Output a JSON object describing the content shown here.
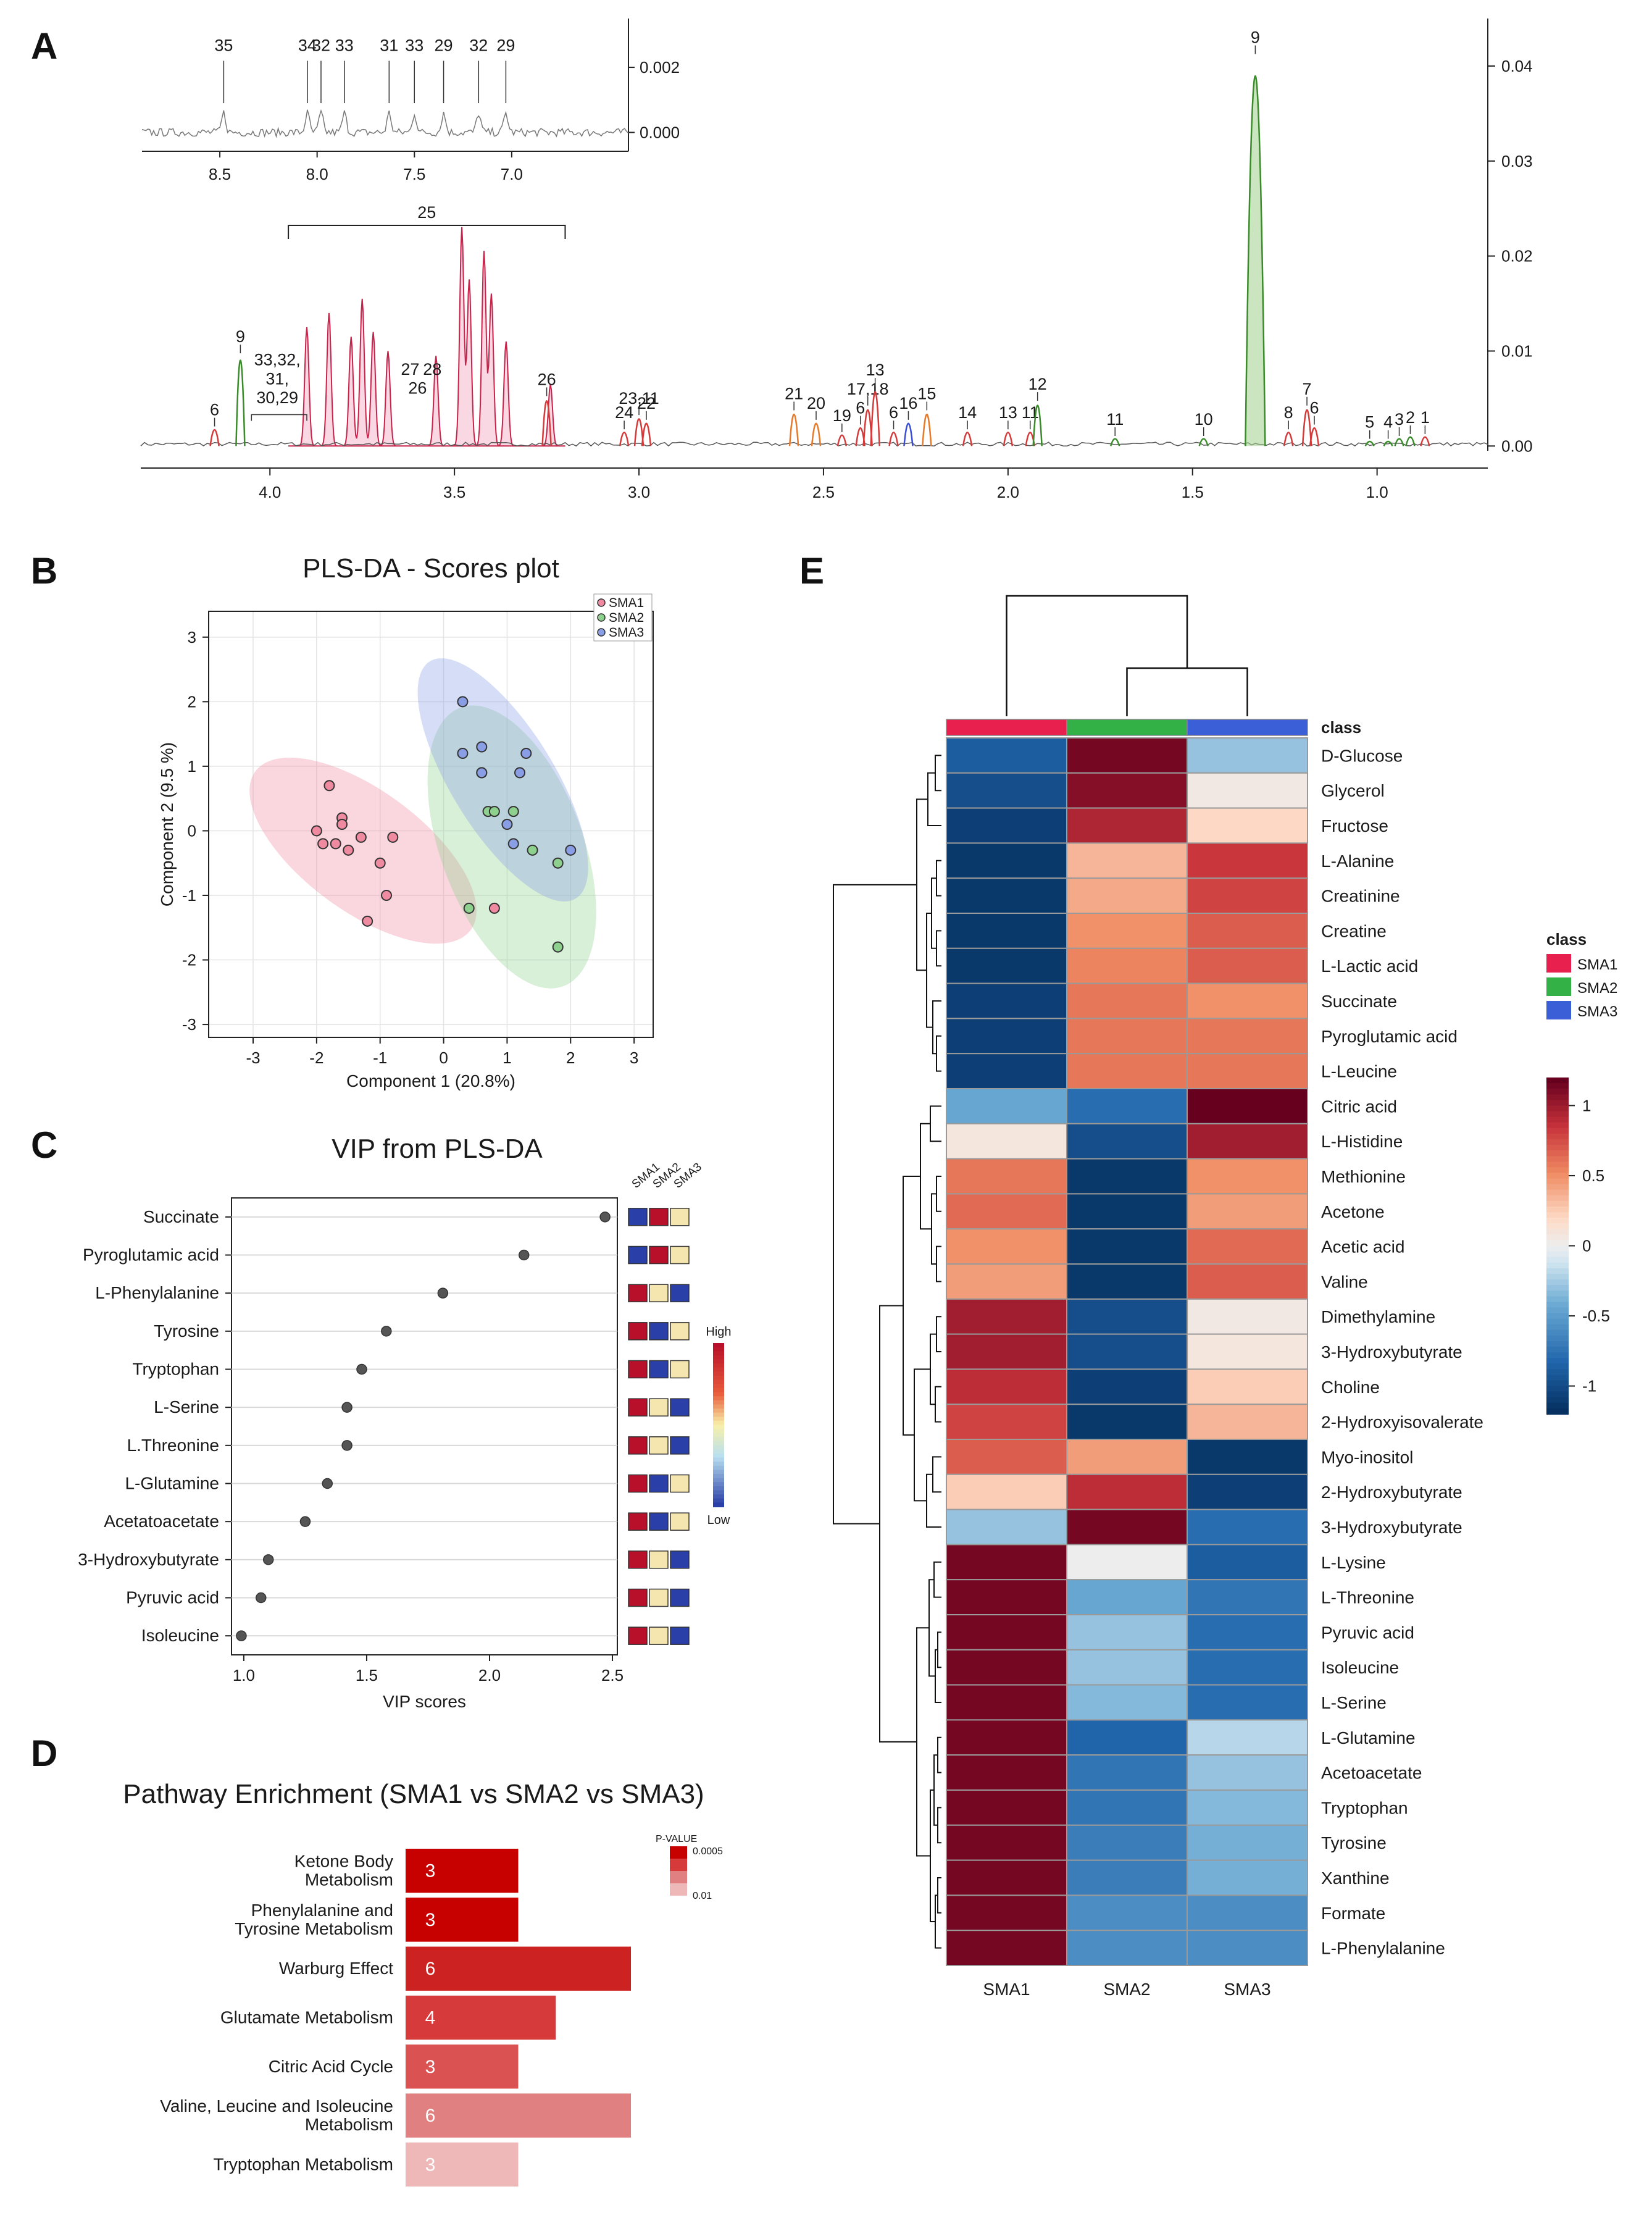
{
  "panels": {
    "a": "A",
    "b": "B",
    "c": "C",
    "d": "D",
    "e": "E"
  },
  "chart_data": [
    {
      "id": "A",
      "type": "line",
      "title": "",
      "xlabel": "",
      "ylabel": "",
      "x_ticks": [
        "4.0",
        "3.5",
        "3.0",
        "2.5",
        "2.0",
        "1.5",
        "1.0"
      ],
      "y_ticks": [
        "0.00",
        "0.01",
        "0.02",
        "0.03",
        "0.04"
      ],
      "xlim": [
        4.35,
        0.7
      ],
      "ylim": [
        -0.0005,
        0.045
      ],
      "groups": [
        "SMA1",
        "SMA2",
        "SMA3"
      ],
      "peaks": [
        {
          "x": 4.15,
          "y": 0.0018,
          "label": "6",
          "color": "#d43a3a"
        },
        {
          "x": 4.08,
          "y": 0.0095,
          "label": "9",
          "color": "#3a8c2a"
        },
        {
          "x": 3.25,
          "y": 0.005,
          "label": "26",
          "color": "#d43a3a"
        },
        {
          "x": 3.04,
          "y": 0.0015,
          "label": "24",
          "color": "#d43a3a"
        },
        {
          "x": 3.0,
          "y": 0.003,
          "label": "23,11",
          "color": "#d43a3a"
        },
        {
          "x": 2.98,
          "y": 0.0025,
          "label": "22",
          "color": "#d43a3a"
        },
        {
          "x": 2.58,
          "y": 0.0035,
          "label": "21",
          "color": "#e67a2a"
        },
        {
          "x": 2.52,
          "y": 0.0025,
          "label": "20",
          "color": "#e67a2a"
        },
        {
          "x": 2.45,
          "y": 0.0012,
          "label": "19",
          "color": "#d43a3a"
        },
        {
          "x": 2.4,
          "y": 0.002,
          "label": "6",
          "color": "#d43a3a"
        },
        {
          "x": 2.38,
          "y": 0.004,
          "label": "17,18",
          "color": "#d43a3a"
        },
        {
          "x": 2.36,
          "y": 0.006,
          "label": "13",
          "color": "#d43a3a"
        },
        {
          "x": 2.31,
          "y": 0.0015,
          "label": "6",
          "color": "#d43a3a"
        },
        {
          "x": 2.27,
          "y": 0.0025,
          "label": "16",
          "color": "#3a4fd1"
        },
        {
          "x": 2.22,
          "y": 0.0035,
          "label": "15",
          "color": "#e67a2a"
        },
        {
          "x": 2.11,
          "y": 0.0015,
          "label": "14",
          "color": "#d43a3a"
        },
        {
          "x": 2.0,
          "y": 0.0015,
          "label": "13",
          "color": "#d43a3a"
        },
        {
          "x": 1.94,
          "y": 0.0015,
          "label": "11",
          "color": "#d43a3a"
        },
        {
          "x": 1.92,
          "y": 0.0045,
          "label": "12",
          "color": "#3a8c2a"
        },
        {
          "x": 1.71,
          "y": 0.0008,
          "label": "11",
          "color": "#3a8c2a"
        },
        {
          "x": 1.47,
          "y": 0.0008,
          "label": "10",
          "color": "#3a8c2a"
        },
        {
          "x": 1.33,
          "y": 0.041,
          "label": "9",
          "color": "#3a8c2a"
        },
        {
          "x": 1.24,
          "y": 0.0015,
          "label": "8",
          "color": "#d43a3a"
        },
        {
          "x": 1.19,
          "y": 0.004,
          "label": "7",
          "color": "#d43a3a"
        },
        {
          "x": 1.17,
          "y": 0.002,
          "label": "6",
          "color": "#d43a3a"
        },
        {
          "x": 1.02,
          "y": 0.0005,
          "label": "5",
          "color": "#3a8c2a"
        },
        {
          "x": 0.97,
          "y": 0.0005,
          "label": "4",
          "color": "#3a8c2a"
        },
        {
          "x": 0.94,
          "y": 0.0008,
          "label": "3",
          "color": "#3a8c2a"
        },
        {
          "x": 0.91,
          "y": 0.001,
          "label": "2",
          "color": "#3a8c2a"
        },
        {
          "x": 0.87,
          "y": 0.001,
          "label": "1",
          "color": "#d43a3a"
        }
      ],
      "group_labels": [
        {
          "text": "33,32,",
          "x": 3.98,
          "y": 0.0085
        },
        {
          "text": "31,",
          "x": 3.98,
          "y": 0.0065
        },
        {
          "text": "30,29",
          "x": 3.98,
          "y": 0.0045
        },
        {
          "text": "27",
          "x": 3.62,
          "y": 0.0075
        },
        {
          "text": "26",
          "x": 3.6,
          "y": 0.0055
        },
        {
          "text": "28",
          "x": 3.56,
          "y": 0.0075
        }
      ],
      "region_25": {
        "label": "25",
        "x_from": 3.95,
        "x_to": 3.2
      },
      "inset": {
        "x_ticks": [
          "8.5",
          "8.0",
          "7.5",
          "7.0"
        ],
        "y_ticks": [
          "0.002",
          "0.000"
        ],
        "xlim": [
          8.9,
          6.4
        ],
        "ylim": [
          -0.0002,
          0.0035
        ],
        "peaks": [
          {
            "x": 8.48,
            "label": "35"
          },
          {
            "x": 8.05,
            "label": "34"
          },
          {
            "x": 7.98,
            "label": "32"
          },
          {
            "x": 7.86,
            "label": "33"
          },
          {
            "x": 7.63,
            "label": "31"
          },
          {
            "x": 7.5,
            "label": "33"
          },
          {
            "x": 7.35,
            "label": "29"
          },
          {
            "x": 7.17,
            "label": "32"
          },
          {
            "x": 7.03,
            "label": "29"
          }
        ]
      }
    },
    {
      "id": "B",
      "type": "scatter",
      "title": "PLS-DA - Scores plot",
      "xlabel": "Component 1 (20.8%)",
      "ylabel": "Component 2 (9.5 %)",
      "xlim": [
        -3.7,
        3.3
      ],
      "ylim": [
        -3.2,
        3.4
      ],
      "x_ticks": [
        "-3",
        "-2",
        "-1",
        "0",
        "1",
        "2",
        "3"
      ],
      "y_ticks": [
        "-3",
        "-2",
        "-1",
        "0",
        "1",
        "2",
        "3"
      ],
      "legend": [
        "SMA1",
        "SMA2",
        "SMA3"
      ],
      "series": [
        {
          "name": "SMA1",
          "color": "#f08aa0",
          "x": [
            -1.8,
            -2.0,
            -1.6,
            -1.6,
            -1.5,
            -1.9,
            -1.7,
            -1.3,
            -0.8,
            -1.0,
            -0.9,
            -1.2,
            0.8
          ],
          "y": [
            0.7,
            0.0,
            0.2,
            0.1,
            -0.3,
            -0.2,
            -0.2,
            -0.1,
            -0.1,
            -0.5,
            -1.0,
            -1.4,
            -1.2
          ]
        },
        {
          "name": "SMA2",
          "color": "#8ed08e",
          "x": [
            0.6,
            0.7,
            0.8,
            1.1,
            1.4,
            1.8,
            0.4,
            1.8
          ],
          "y": [
            0.9,
            0.3,
            0.3,
            0.3,
            -0.3,
            -0.5,
            -1.2,
            -1.8
          ]
        },
        {
          "name": "SMA3",
          "color": "#8a9ee6",
          "x": [
            0.3,
            0.6,
            0.3,
            0.6,
            1.3,
            1.2,
            1.0,
            1.1,
            2.0
          ],
          "y": [
            2.0,
            1.3,
            1.2,
            0.9,
            1.2,
            0.9,
            0.1,
            -0.2,
            -0.3
          ]
        }
      ]
    },
    {
      "id": "C",
      "type": "scatter",
      "title": "VIP from PLS-DA",
      "xlabel": "VIP scores",
      "xlim": [
        0.95,
        2.52
      ],
      "x_ticks": [
        "1.0",
        "1.5",
        "2.0",
        "2.5"
      ],
      "categories": [
        "Succinate",
        "Pyroglutamic acid",
        "L-Phenylalanine",
        "Tyrosine",
        "Tryptophan",
        "L-Serine",
        "L.Threonine",
        "L-Glutamine",
        "Acetatoacetate",
        "3-Hydroxybutyrate",
        "Pyruvic acid",
        "Isoleucine"
      ],
      "values": [
        2.47,
        2.14,
        1.81,
        1.58,
        1.48,
        1.42,
        1.42,
        1.34,
        1.25,
        1.1,
        1.07,
        0.99
      ],
      "group_columns": [
        "SMA1",
        "SMA2",
        "SMA3"
      ],
      "relative_levels": [
        [
          "low",
          "high",
          "mid"
        ],
        [
          "low",
          "high",
          "mid"
        ],
        [
          "high",
          "mid",
          "low"
        ],
        [
          "high",
          "low",
          "mid"
        ],
        [
          "high",
          "low",
          "mid"
        ],
        [
          "high",
          "mid",
          "low"
        ],
        [
          "high",
          "mid",
          "low"
        ],
        [
          "high",
          "low",
          "mid"
        ],
        [
          "high",
          "low",
          "mid"
        ],
        [
          "high",
          "mid",
          "low"
        ],
        [
          "high",
          "mid",
          "low"
        ],
        [
          "high",
          "mid",
          "low"
        ]
      ],
      "legend_high": "High",
      "legend_low": "Low",
      "level_colors": {
        "high": "#b8102a",
        "mid": "#f5e6b0",
        "low": "#2a3fa8"
      }
    },
    {
      "id": "D",
      "type": "bar",
      "title": "Pathway Enrichment (SMA1 vs SMA2 vs SMA3)",
      "categories": [
        [
          "Ketone Body",
          "Metabolism"
        ],
        [
          "Phenylalanine and",
          "Tyrosine Metabolism"
        ],
        [
          "Warburg Effect"
        ],
        [
          "Glutamate Metabolism"
        ],
        [
          "Citric Acid Cycle"
        ],
        [
          "Valine, Leucine and Isoleucine",
          "Metabolism"
        ],
        [
          "Tryptophan Metabolism"
        ]
      ],
      "values": [
        3,
        3,
        6,
        4,
        3,
        6,
        3
      ],
      "value_labels": [
        "3",
        "3",
        "6",
        "4",
        "3",
        "6",
        "3"
      ],
      "xlim": [
        0,
        6
      ],
      "bar_colors": [
        "#c70000",
        "#c70000",
        "#cc2222",
        "#d63a3a",
        "#db5252",
        "#e08080",
        "#efb8b8"
      ],
      "legend_title": "P-VALUE",
      "legend_ticks": [
        "0.0005",
        "0.01"
      ]
    },
    {
      "id": "E",
      "type": "heatmap",
      "columns": [
        "SMA1",
        "SMA2",
        "SMA3"
      ],
      "class_label": "class",
      "class_colors": [
        "#e8204d",
        "#33b046",
        "#3a5fd6"
      ],
      "legend_title": "class",
      "legend_entries": [
        "SMA1",
        "SMA2",
        "SMA3"
      ],
      "colorbar_ticks": [
        "1",
        "0.5",
        "0",
        "-0.5",
        "-1"
      ],
      "colorbar_range": [
        -1.2,
        1.2
      ],
      "rows": [
        "D-Glucose",
        "Glycerol",
        "Fructose",
        "L-Alanine",
        "Creatinine",
        "Creatine",
        "L-Lactic acid",
        "Succinate",
        "Pyroglutamic acid",
        "L-Leucine",
        "Citric acid",
        "L-Histidine",
        "Methionine",
        "Acetone",
        "Acetic acid",
        "Valine",
        "Dimethylamine",
        "3-Hydroxybutyrate",
        "Choline",
        "2-Hydroxyisovalerate",
        "Myo-inositol",
        "2-Hydroxybutyrate",
        "3-Hydroxybutyrate",
        "L-Lysine",
        "L-Threonine",
        "Pyruvic acid",
        "Isoleucine",
        "L-Serine",
        "L-Glutamine",
        "Acetoacetate",
        "Tryptophan",
        "Tyrosine",
        "Xanthine",
        "Formate",
        "L-Phenylalanine"
      ],
      "values": [
        [
          -0.9,
          1.15,
          -0.3
        ],
        [
          -1.0,
          1.1,
          0.05
        ],
        [
          -1.1,
          0.95,
          0.2
        ],
        [
          -1.15,
          0.35,
          0.85
        ],
        [
          -1.15,
          0.4,
          0.8
        ],
        [
          -1.15,
          0.5,
          0.7
        ],
        [
          -1.15,
          0.55,
          0.7
        ],
        [
          -1.1,
          0.6,
          0.5
        ],
        [
          -1.1,
          0.6,
          0.6
        ],
        [
          -1.1,
          0.6,
          0.6
        ],
        [
          -0.45,
          -0.8,
          1.2
        ],
        [
          0.08,
          -1.0,
          1.0
        ],
        [
          0.6,
          -1.15,
          0.5
        ],
        [
          0.65,
          -1.15,
          0.45
        ],
        [
          0.5,
          -1.15,
          0.65
        ],
        [
          0.45,
          -1.15,
          0.7
        ],
        [
          1.0,
          -1.0,
          0.05
        ],
        [
          1.0,
          -1.0,
          0.08
        ],
        [
          0.9,
          -1.1,
          0.25
        ],
        [
          0.8,
          -1.15,
          0.35
        ],
        [
          0.7,
          0.45,
          -1.15
        ],
        [
          0.25,
          0.9,
          -1.1
        ],
        [
          -0.3,
          1.15,
          -0.8
        ],
        [
          1.15,
          0.0,
          -0.9
        ],
        [
          1.15,
          -0.45,
          -0.75
        ],
        [
          1.15,
          -0.3,
          -0.8
        ],
        [
          1.15,
          -0.3,
          -0.8
        ],
        [
          1.15,
          -0.35,
          -0.8
        ],
        [
          1.15,
          -0.85,
          -0.2
        ],
        [
          1.15,
          -0.75,
          -0.3
        ],
        [
          1.15,
          -0.75,
          -0.35
        ],
        [
          1.15,
          -0.7,
          -0.4
        ],
        [
          1.15,
          -0.7,
          -0.4
        ],
        [
          1.15,
          -0.6,
          -0.6
        ],
        [
          1.15,
          -0.6,
          -0.6
        ]
      ]
    }
  ]
}
